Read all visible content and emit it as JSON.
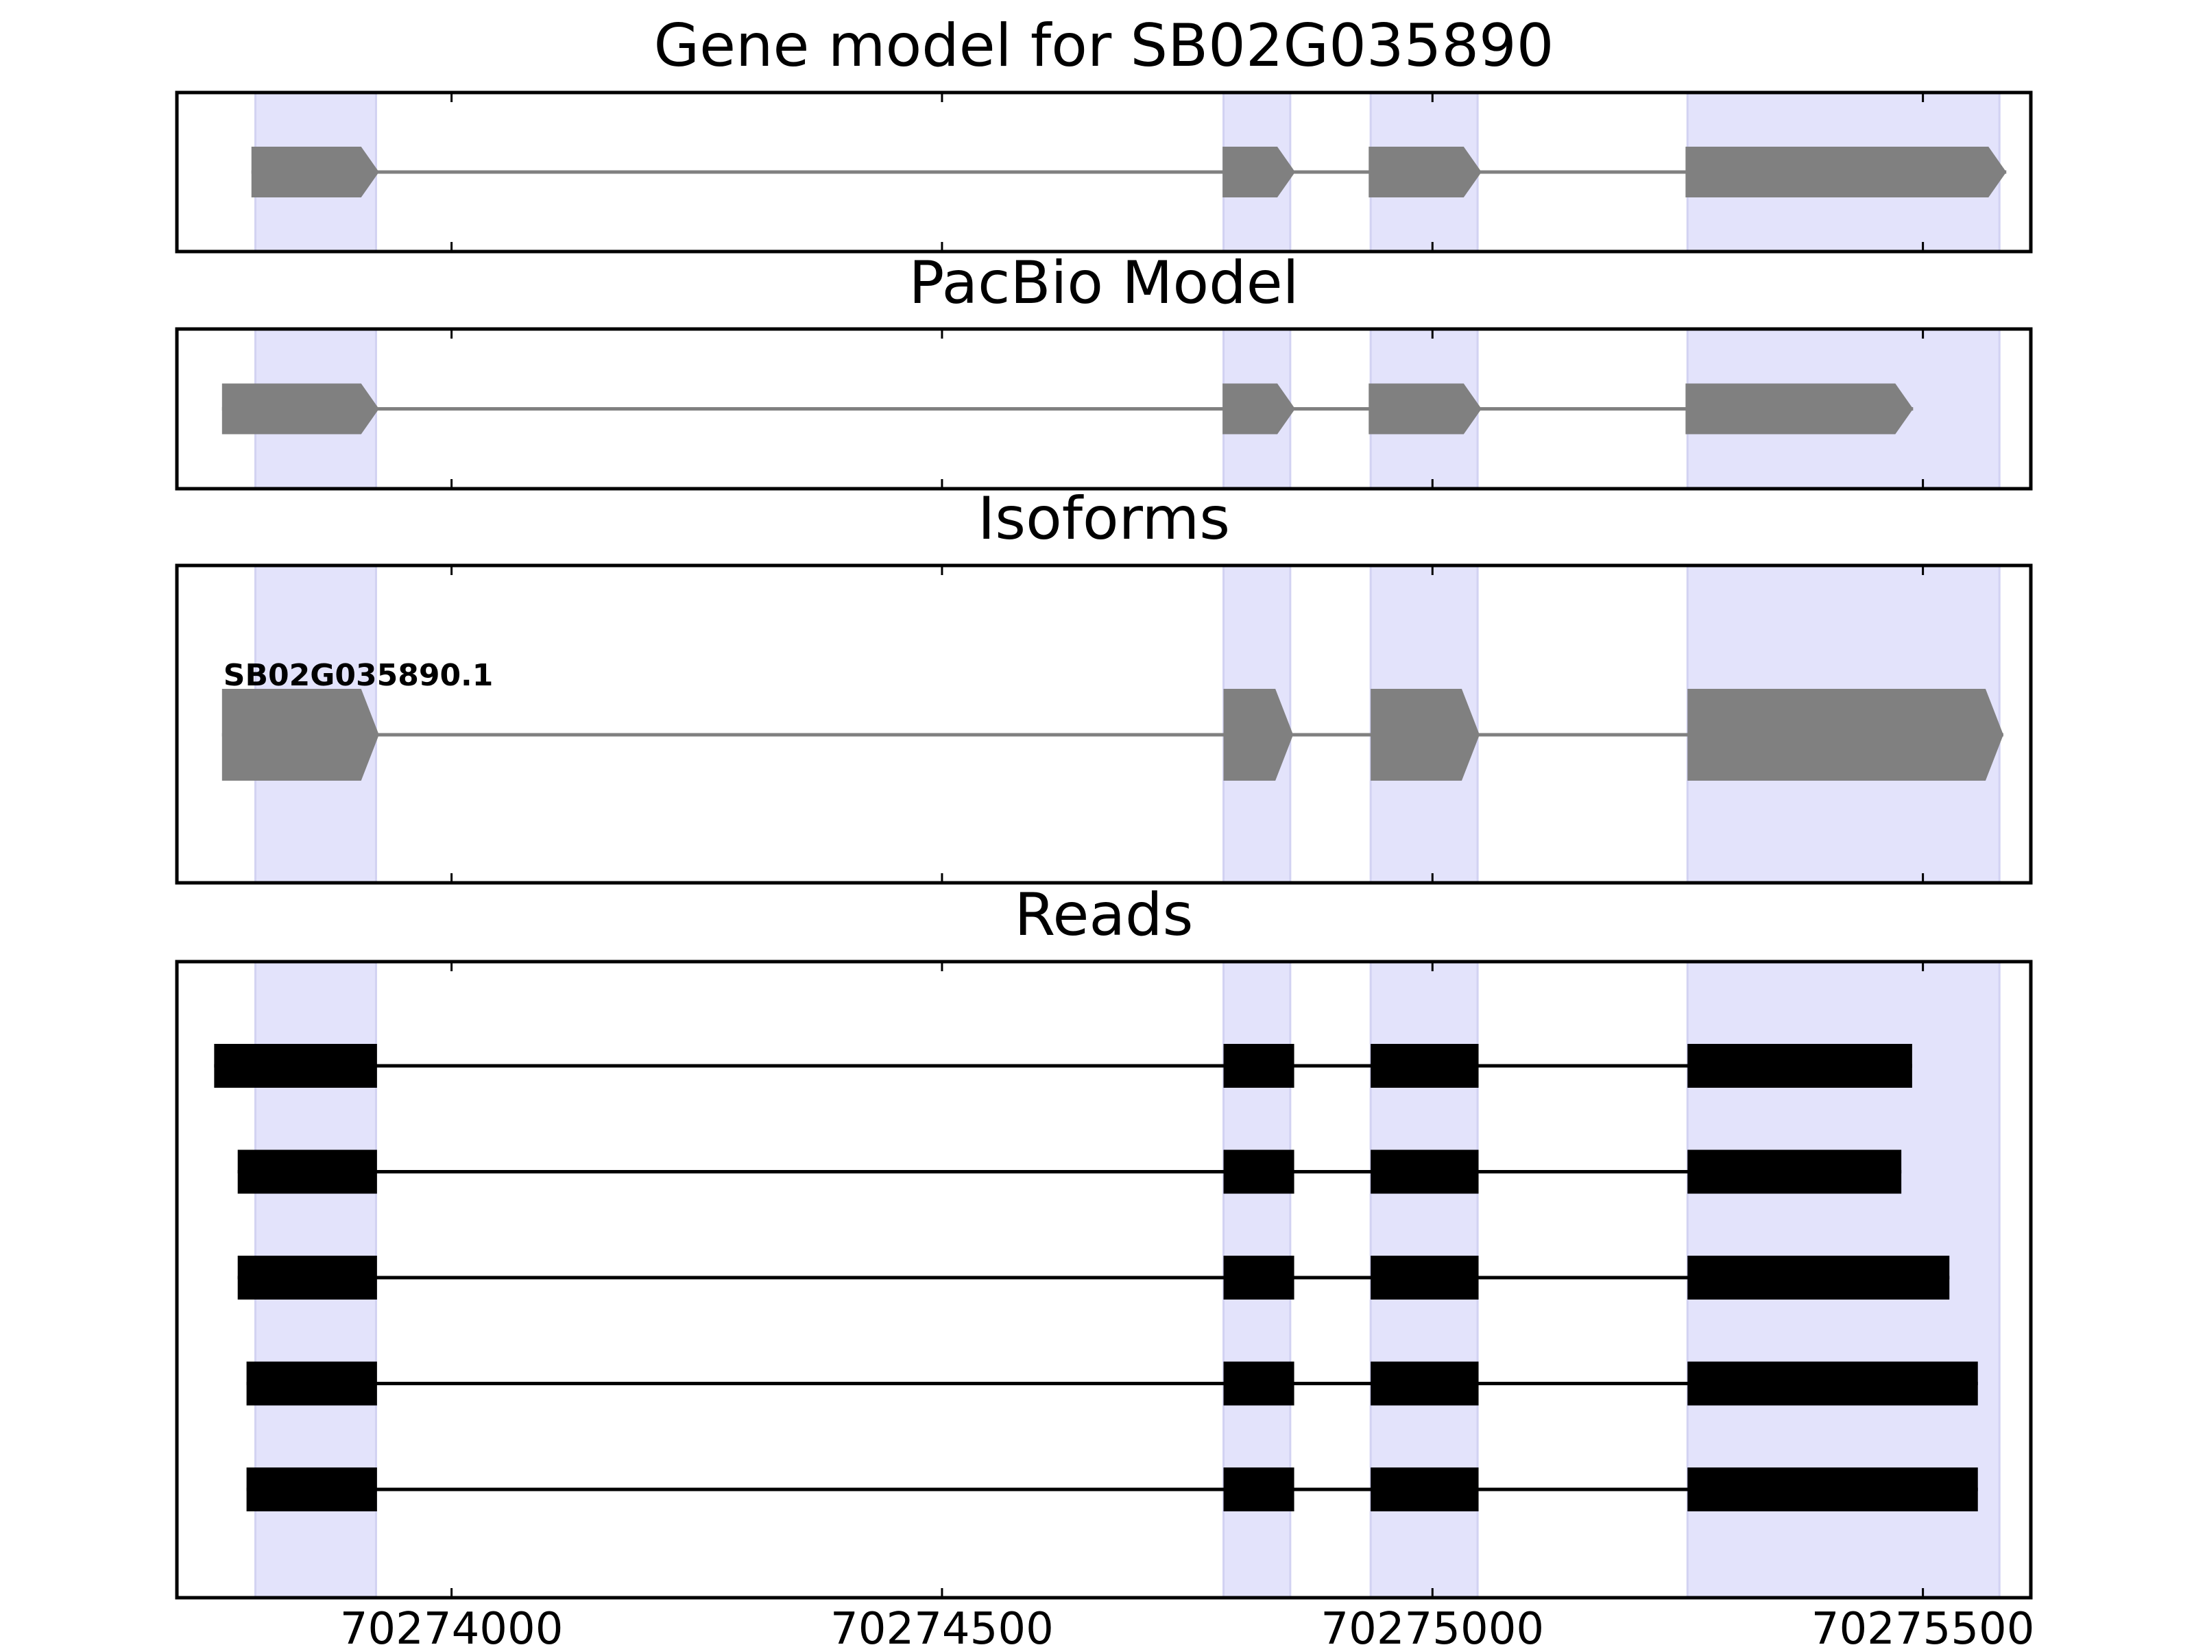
{
  "chart_data": {
    "type": "gene-structure",
    "x_axis": {
      "range": [
        70273720,
        70275610
      ],
      "ticks": [
        70274000,
        70274500,
        70275000,
        70275500
      ],
      "tick_labels": [
        "70274000",
        "70274500",
        "70275000",
        "70275500"
      ]
    },
    "colors": {
      "highlight": "#e3e3fb",
      "highlight_edge": "#d2d2f2",
      "model": "#808080",
      "read": "#000000",
      "frame": "#000000"
    },
    "exon_highlights": [
      [
        70273800,
        70273923
      ],
      [
        70274787,
        70274855
      ],
      [
        70274937,
        70275046
      ],
      [
        70275260,
        70275578
      ]
    ],
    "panels": [
      {
        "title": "Gene model for SB02G035890",
        "kind": "model",
        "lanes": 1,
        "tracks": [
          {
            "label": "",
            "exons": [
              [
                70273796,
                70273926
              ],
              [
                70274786,
                70274860
              ],
              [
                70274935,
                70275050
              ],
              [
                70275258,
                70275585
              ]
            ]
          }
        ]
      },
      {
        "title": "PacBio Model",
        "kind": "model",
        "lanes": 1,
        "tracks": [
          {
            "label": "",
            "exons": [
              [
                70273766,
                70273926
              ],
              [
                70274786,
                70274860
              ],
              [
                70274935,
                70275050
              ],
              [
                70275258,
                70275490
              ]
            ]
          }
        ]
      },
      {
        "title": "Isoforms",
        "kind": "isoform",
        "lanes": 1,
        "tracks": [
          {
            "label": "SB02G035890.1",
            "exons": [
              [
                70273766,
                70273926
              ],
              [
                70274787,
                70274858
              ],
              [
                70274937,
                70275048
              ],
              [
                70275260,
                70275582
              ]
            ]
          }
        ]
      },
      {
        "title": "Reads",
        "kind": "reads",
        "lanes": 5,
        "tracks": [
          {
            "label": "",
            "exons": [
              [
                70273758,
                70273924
              ],
              [
                70274787,
                70274859
              ],
              [
                70274937,
                70275047
              ],
              [
                70275260,
                70275489
              ]
            ]
          },
          {
            "label": "",
            "exons": [
              [
                70273782,
                70273924
              ],
              [
                70274787,
                70274859
              ],
              [
                70274937,
                70275047
              ],
              [
                70275260,
                70275478
              ]
            ]
          },
          {
            "label": "",
            "exons": [
              [
                70273782,
                70273924
              ],
              [
                70274787,
                70274859
              ],
              [
                70274937,
                70275047
              ],
              [
                70275260,
                70275527
              ]
            ]
          },
          {
            "label": "",
            "exons": [
              [
                70273791,
                70273924
              ],
              [
                70274787,
                70274859
              ],
              [
                70274937,
                70275047
              ],
              [
                70275260,
                70275556
              ]
            ]
          },
          {
            "label": "",
            "exons": [
              [
                70273791,
                70273924
              ],
              [
                70274787,
                70274859
              ],
              [
                70274937,
                70275047
              ],
              [
                70275260,
                70275556
              ]
            ]
          }
        ]
      }
    ]
  }
}
